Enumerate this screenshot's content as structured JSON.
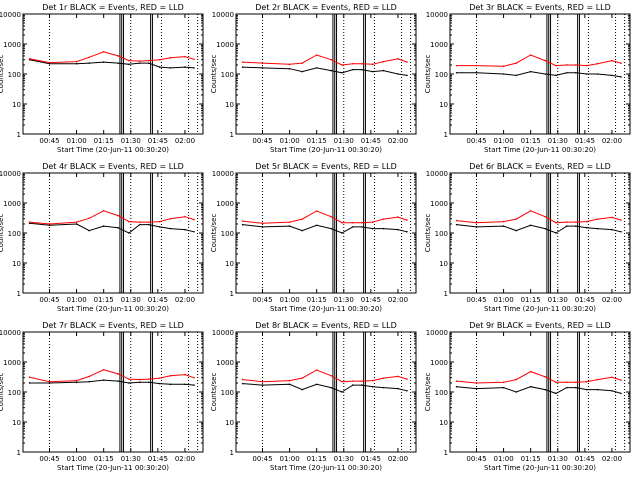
{
  "figure": {
    "start_time_label": "Start Time (20-Jun-11 00:30:20)",
    "ylabel": "Counts/sec",
    "xticks": [
      "00:45",
      "01:00",
      "01:15",
      "01:30",
      "01:45",
      "02:00"
    ],
    "ytick_labels": [
      "1",
      "10",
      "100",
      "1000",
      "10000"
    ],
    "colors": {
      "events": "#000000",
      "lld": "#ff0000",
      "background": "#ffffff"
    }
  },
  "chart_data": [
    {
      "type": "line",
      "title": "Det 1r BLACK = Events, RED = LLD",
      "xlabel": "Start Time (20-Jun-11 00:30:20)",
      "ylabel": "Counts/sec",
      "ylim": [
        1,
        10000
      ],
      "yscale": "log",
      "x": [
        "00:34",
        "00:45",
        "01:00",
        "01:07",
        "01:15",
        "01:23",
        "01:29",
        "01:35",
        "01:40",
        "01:46",
        "01:52",
        "02:00",
        "02:05"
      ],
      "series": [
        {
          "name": "BLACK = Events",
          "values": [
            300,
            220,
            220,
            230,
            250,
            230,
            210,
            230,
            230,
            170,
            160,
            170,
            160
          ]
        },
        {
          "name": "RED = LLD",
          "values": [
            320,
            240,
            260,
            360,
            550,
            400,
            280,
            270,
            280,
            300,
            350,
            380,
            310
          ]
        }
      ]
    },
    {
      "type": "line",
      "title": "Det 2r BLACK = Events, RED = LLD",
      "xlabel": "Start Time (20-Jun-11 00:30:20)",
      "ylabel": "Counts/sec",
      "ylim": [
        1,
        10000
      ],
      "yscale": "log",
      "x": [
        "00:34",
        "00:45",
        "01:00",
        "01:07",
        "01:15",
        "01:23",
        "01:29",
        "01:35",
        "01:40",
        "01:46",
        "01:52",
        "02:00",
        "02:05"
      ],
      "series": [
        {
          "name": "BLACK = Events",
          "values": [
            170,
            160,
            150,
            120,
            160,
            130,
            110,
            140,
            140,
            120,
            130,
            100,
            90
          ]
        },
        {
          "name": "RED = LLD",
          "values": [
            250,
            230,
            210,
            230,
            430,
            300,
            200,
            220,
            220,
            210,
            260,
            320,
            250
          ]
        }
      ]
    },
    {
      "type": "line",
      "title": "Det 3r BLACK = Events, RED = LLD",
      "xlabel": "Start Time (20-Jun-11 00:30:20)",
      "ylabel": "Counts/sec",
      "ylim": [
        1,
        10000
      ],
      "yscale": "log",
      "x": [
        "00:34",
        "00:45",
        "01:00",
        "01:07",
        "01:15",
        "01:23",
        "01:29",
        "01:35",
        "01:40",
        "01:46",
        "01:52",
        "02:00",
        "02:05"
      ],
      "series": [
        {
          "name": "BLACK = Events",
          "values": [
            110,
            110,
            100,
            90,
            120,
            100,
            90,
            110,
            110,
            100,
            100,
            90,
            80
          ]
        },
        {
          "name": "RED = LLD",
          "values": [
            190,
            190,
            180,
            230,
            430,
            280,
            190,
            200,
            200,
            190,
            220,
            280,
            230
          ]
        }
      ]
    },
    {
      "type": "line",
      "title": "Det 4r BLACK = Events, RED = LLD",
      "xlabel": "Start Time (20-Jun-11 00:30:20)",
      "ylabel": "Counts/sec",
      "ylim": [
        1,
        10000
      ],
      "yscale": "log",
      "x": [
        "00:34",
        "00:45",
        "01:00",
        "01:07",
        "01:15",
        "01:23",
        "01:29",
        "01:35",
        "01:40",
        "01:46",
        "01:52",
        "02:00",
        "02:05"
      ],
      "series": [
        {
          "name": "BLACK = Events",
          "values": [
            210,
            180,
            200,
            120,
            170,
            150,
            100,
            190,
            190,
            160,
            140,
            130,
            110
          ]
        },
        {
          "name": "RED = LLD",
          "values": [
            230,
            200,
            230,
            310,
            550,
            380,
            240,
            230,
            230,
            240,
            300,
            350,
            280
          ]
        }
      ]
    },
    {
      "type": "line",
      "title": "Det 5r BLACK = Events, RED = LLD",
      "xlabel": "Start Time (20-Jun-11 00:30:20)",
      "ylabel": "Counts/sec",
      "ylim": [
        1,
        10000
      ],
      "yscale": "log",
      "x": [
        "00:34",
        "00:45",
        "01:00",
        "01:07",
        "01:15",
        "01:23",
        "01:29",
        "01:35",
        "01:40",
        "01:46",
        "01:52",
        "02:00",
        "02:05"
      ],
      "series": [
        {
          "name": "BLACK = Events",
          "values": [
            190,
            160,
            170,
            120,
            180,
            140,
            100,
            160,
            160,
            140,
            140,
            130,
            110
          ]
        },
        {
          "name": "RED = LLD",
          "values": [
            250,
            210,
            230,
            290,
            540,
            350,
            220,
            220,
            220,
            230,
            290,
            340,
            270
          ]
        }
      ]
    },
    {
      "type": "line",
      "title": "Det 6r BLACK = Events, RED = LLD",
      "xlabel": "Start Time (20-Jun-11 00:30:20)",
      "ylabel": "Counts/sec",
      "ylim": [
        1,
        10000
      ],
      "yscale": "log",
      "x": [
        "00:34",
        "00:45",
        "01:00",
        "01:07",
        "01:15",
        "01:23",
        "01:29",
        "01:35",
        "01:40",
        "01:46",
        "01:52",
        "02:00",
        "02:05"
      ],
      "series": [
        {
          "name": "BLACK = Events",
          "values": [
            190,
            160,
            170,
            120,
            180,
            140,
            100,
            170,
            170,
            150,
            140,
            130,
            110
          ]
        },
        {
          "name": "RED = LLD",
          "values": [
            260,
            220,
            240,
            290,
            550,
            350,
            220,
            230,
            230,
            240,
            290,
            330,
            270
          ]
        }
      ]
    },
    {
      "type": "line",
      "title": "Det 7r BLACK = Events, RED = LLD",
      "xlabel": "Start Time (20-Jun-11 00:30:20)",
      "ylabel": "Counts/sec",
      "ylim": [
        1,
        10000
      ],
      "yscale": "log",
      "x": [
        "00:34",
        "00:45",
        "01:00",
        "01:07",
        "01:15",
        "01:23",
        "01:29",
        "01:35",
        "01:40",
        "01:46",
        "01:52",
        "02:00",
        "02:05"
      ],
      "series": [
        {
          "name": "BLACK = Events",
          "values": [
            200,
            200,
            210,
            220,
            250,
            230,
            200,
            210,
            210,
            190,
            180,
            180,
            170
          ]
        },
        {
          "name": "RED = LLD",
          "values": [
            310,
            220,
            240,
            330,
            550,
            400,
            270,
            260,
            270,
            290,
            350,
            380,
            300
          ]
        }
      ]
    },
    {
      "type": "line",
      "title": "Det 8r BLACK = Events, RED = LLD",
      "xlabel": "Start Time (20-Jun-11 00:30:20)",
      "ylabel": "Counts/sec",
      "ylim": [
        1,
        10000
      ],
      "yscale": "log",
      "x": [
        "00:34",
        "00:45",
        "01:00",
        "01:07",
        "01:15",
        "01:23",
        "01:29",
        "01:35",
        "01:40",
        "01:46",
        "01:52",
        "02:00",
        "02:05"
      ],
      "series": [
        {
          "name": "BLACK = Events",
          "values": [
            190,
            170,
            180,
            120,
            180,
            140,
            100,
            170,
            170,
            150,
            140,
            130,
            110
          ]
        },
        {
          "name": "RED = LLD",
          "values": [
            260,
            220,
            240,
            290,
            540,
            350,
            220,
            230,
            230,
            240,
            290,
            330,
            270
          ]
        }
      ]
    },
    {
      "type": "line",
      "title": "Det 9r BLACK = Events, RED = LLD",
      "xlabel": "Start Time (20-Jun-11 00:30:20)",
      "ylabel": "Counts/sec",
      "ylim": [
        1,
        10000
      ],
      "yscale": "log",
      "x": [
        "00:34",
        "00:45",
        "01:00",
        "01:07",
        "01:15",
        "01:23",
        "01:29",
        "01:35",
        "01:40",
        "01:46",
        "01:52",
        "02:00",
        "02:05"
      ],
      "series": [
        {
          "name": "BLACK = Events",
          "values": [
            150,
            130,
            140,
            100,
            150,
            120,
            90,
            140,
            140,
            120,
            120,
            110,
            90
          ]
        },
        {
          "name": "RED = LLD",
          "values": [
            230,
            200,
            210,
            260,
            480,
            320,
            210,
            210,
            210,
            220,
            260,
            310,
            250
          ]
        }
      ]
    }
  ]
}
